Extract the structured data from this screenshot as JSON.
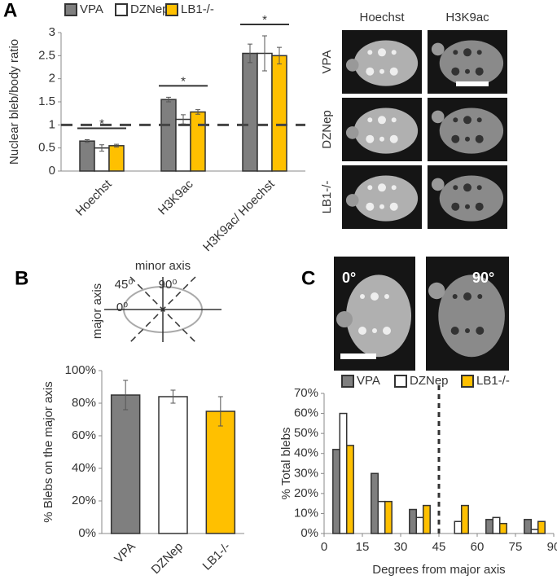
{
  "panel_labels": [
    "A",
    "B",
    "C"
  ],
  "chart_data": [
    {
      "type": "bar",
      "ylabel": "Nuclear bleb/body ratio",
      "categories": [
        "Hoechst",
        "H3K9ac",
        "H3K9ac/ Hoechst"
      ],
      "series": [
        {
          "name": "VPA",
          "color": "#7f7f7f",
          "values": [
            0.65,
            1.55,
            2.55
          ],
          "errors": [
            0.03,
            0.05,
            0.2
          ]
        },
        {
          "name": "DZNep",
          "color": "#ffffff",
          "values": [
            0.5,
            1.12,
            2.55
          ],
          "errors": [
            0.07,
            0.1,
            0.38
          ]
        },
        {
          "name": "LB1-/-",
          "color": "#ffc000",
          "values": [
            0.55,
            1.28,
            2.5
          ],
          "errors": [
            0.03,
            0.05,
            0.18
          ]
        }
      ],
      "ylim": [
        0,
        3
      ],
      "yticks": [
        0,
        0.5,
        1,
        1.5,
        2,
        2.5,
        3
      ],
      "hline": 1,
      "annotations": [
        "*",
        "*",
        "*"
      ],
      "legend": "top"
    },
    {
      "type": "bar",
      "ylabel": "% Blebs on the major axis",
      "categories": [
        "VPA",
        "DZNep",
        "LB1-/-"
      ],
      "values": [
        85,
        84,
        75
      ],
      "errors": [
        9,
        4,
        9
      ],
      "colors": [
        "#7f7f7f",
        "#ffffff",
        "#ffc000"
      ],
      "ylim": [
        0,
        100
      ],
      "yticks": [
        {
          "value": 0,
          "label": "0%"
        },
        {
          "value": 20,
          "label": "20%"
        },
        {
          "value": 40,
          "label": "40%"
        },
        {
          "value": 60,
          "label": "60%"
        },
        {
          "value": 80,
          "label": "80%"
        },
        {
          "value": 100,
          "label": "100%"
        }
      ]
    },
    {
      "type": "bar",
      "xlabel": "Degrees from major axis",
      "ylabel": "% Total blebs",
      "x": [
        7.5,
        22.5,
        37.5,
        52.5,
        67.5,
        82.5
      ],
      "series": [
        {
          "name": "VPA",
          "color": "#7f7f7f",
          "values": [
            42,
            30,
            12,
            0,
            7,
            7
          ]
        },
        {
          "name": "DZNep",
          "color": "#ffffff",
          "values": [
            60,
            16,
            8,
            6,
            8,
            2
          ]
        },
        {
          "name": "LB1-/-",
          "color": "#ffc000",
          "values": [
            44,
            16,
            14,
            14,
            5,
            6
          ]
        }
      ],
      "xlim": [
        0,
        90
      ],
      "xticks": [
        0,
        15,
        30,
        45,
        60,
        75,
        90
      ],
      "ylim": [
        0,
        70
      ],
      "yticks": [
        {
          "value": 0,
          "label": "0%"
        },
        {
          "value": 10,
          "label": "10%"
        },
        {
          "value": 20,
          "label": "20%"
        },
        {
          "value": 30,
          "label": "30%"
        },
        {
          "value": 40,
          "label": "40%"
        },
        {
          "value": 50,
          "label": "50%"
        },
        {
          "value": 60,
          "label": "60%"
        },
        {
          "value": 70,
          "label": "70%"
        }
      ],
      "vline": 45,
      "legend": "top"
    }
  ],
  "images": {
    "columns": [
      "Hoechst",
      "H3K9ac"
    ],
    "rows": [
      "VPA",
      "DZNep",
      "LB1-/-"
    ],
    "angles": [
      "0°",
      "90°"
    ]
  },
  "diagram": {
    "minor": "minor axis",
    "a45": "45⁰",
    "a90": "90⁰",
    "a0": "0⁰",
    "major": "major axis"
  }
}
